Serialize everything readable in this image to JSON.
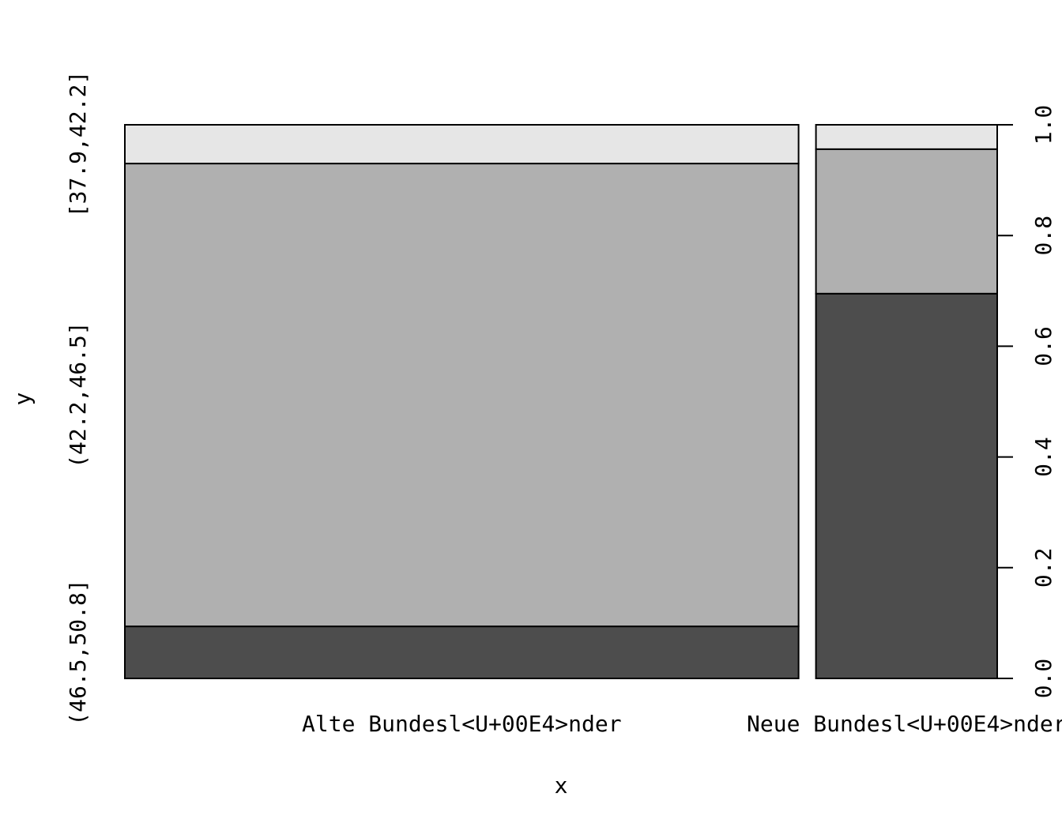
{
  "chart_data": {
    "type": "spineplot",
    "xlabel": "x",
    "ylabel": "y",
    "categories": [
      "Alte Bundesl<U+00E4>nder",
      "Neue Bundesl<U+00E4>nder"
    ],
    "widths": [
      0.788,
      0.212
    ],
    "series": [
      {
        "name": "(46.5,50.8]",
        "color": "#4d4d4d",
        "values": [
          0.094,
          0.695
        ]
      },
      {
        "name": "(42.2,46.5]",
        "color": "#b0b0b0",
        "values": [
          0.836,
          0.261
        ]
      },
      {
        "name": "[37.9,42.2]",
        "color": "#e6e6e6",
        "values": [
          0.07,
          0.044
        ]
      }
    ],
    "ylim": [
      0,
      1
    ],
    "yticks": [
      {
        "value": 0,
        "label": "0.0"
      },
      0.2,
      0.4,
      0.6,
      0.8,
      {
        "value": 1,
        "label": "1.0"
      }
    ]
  }
}
